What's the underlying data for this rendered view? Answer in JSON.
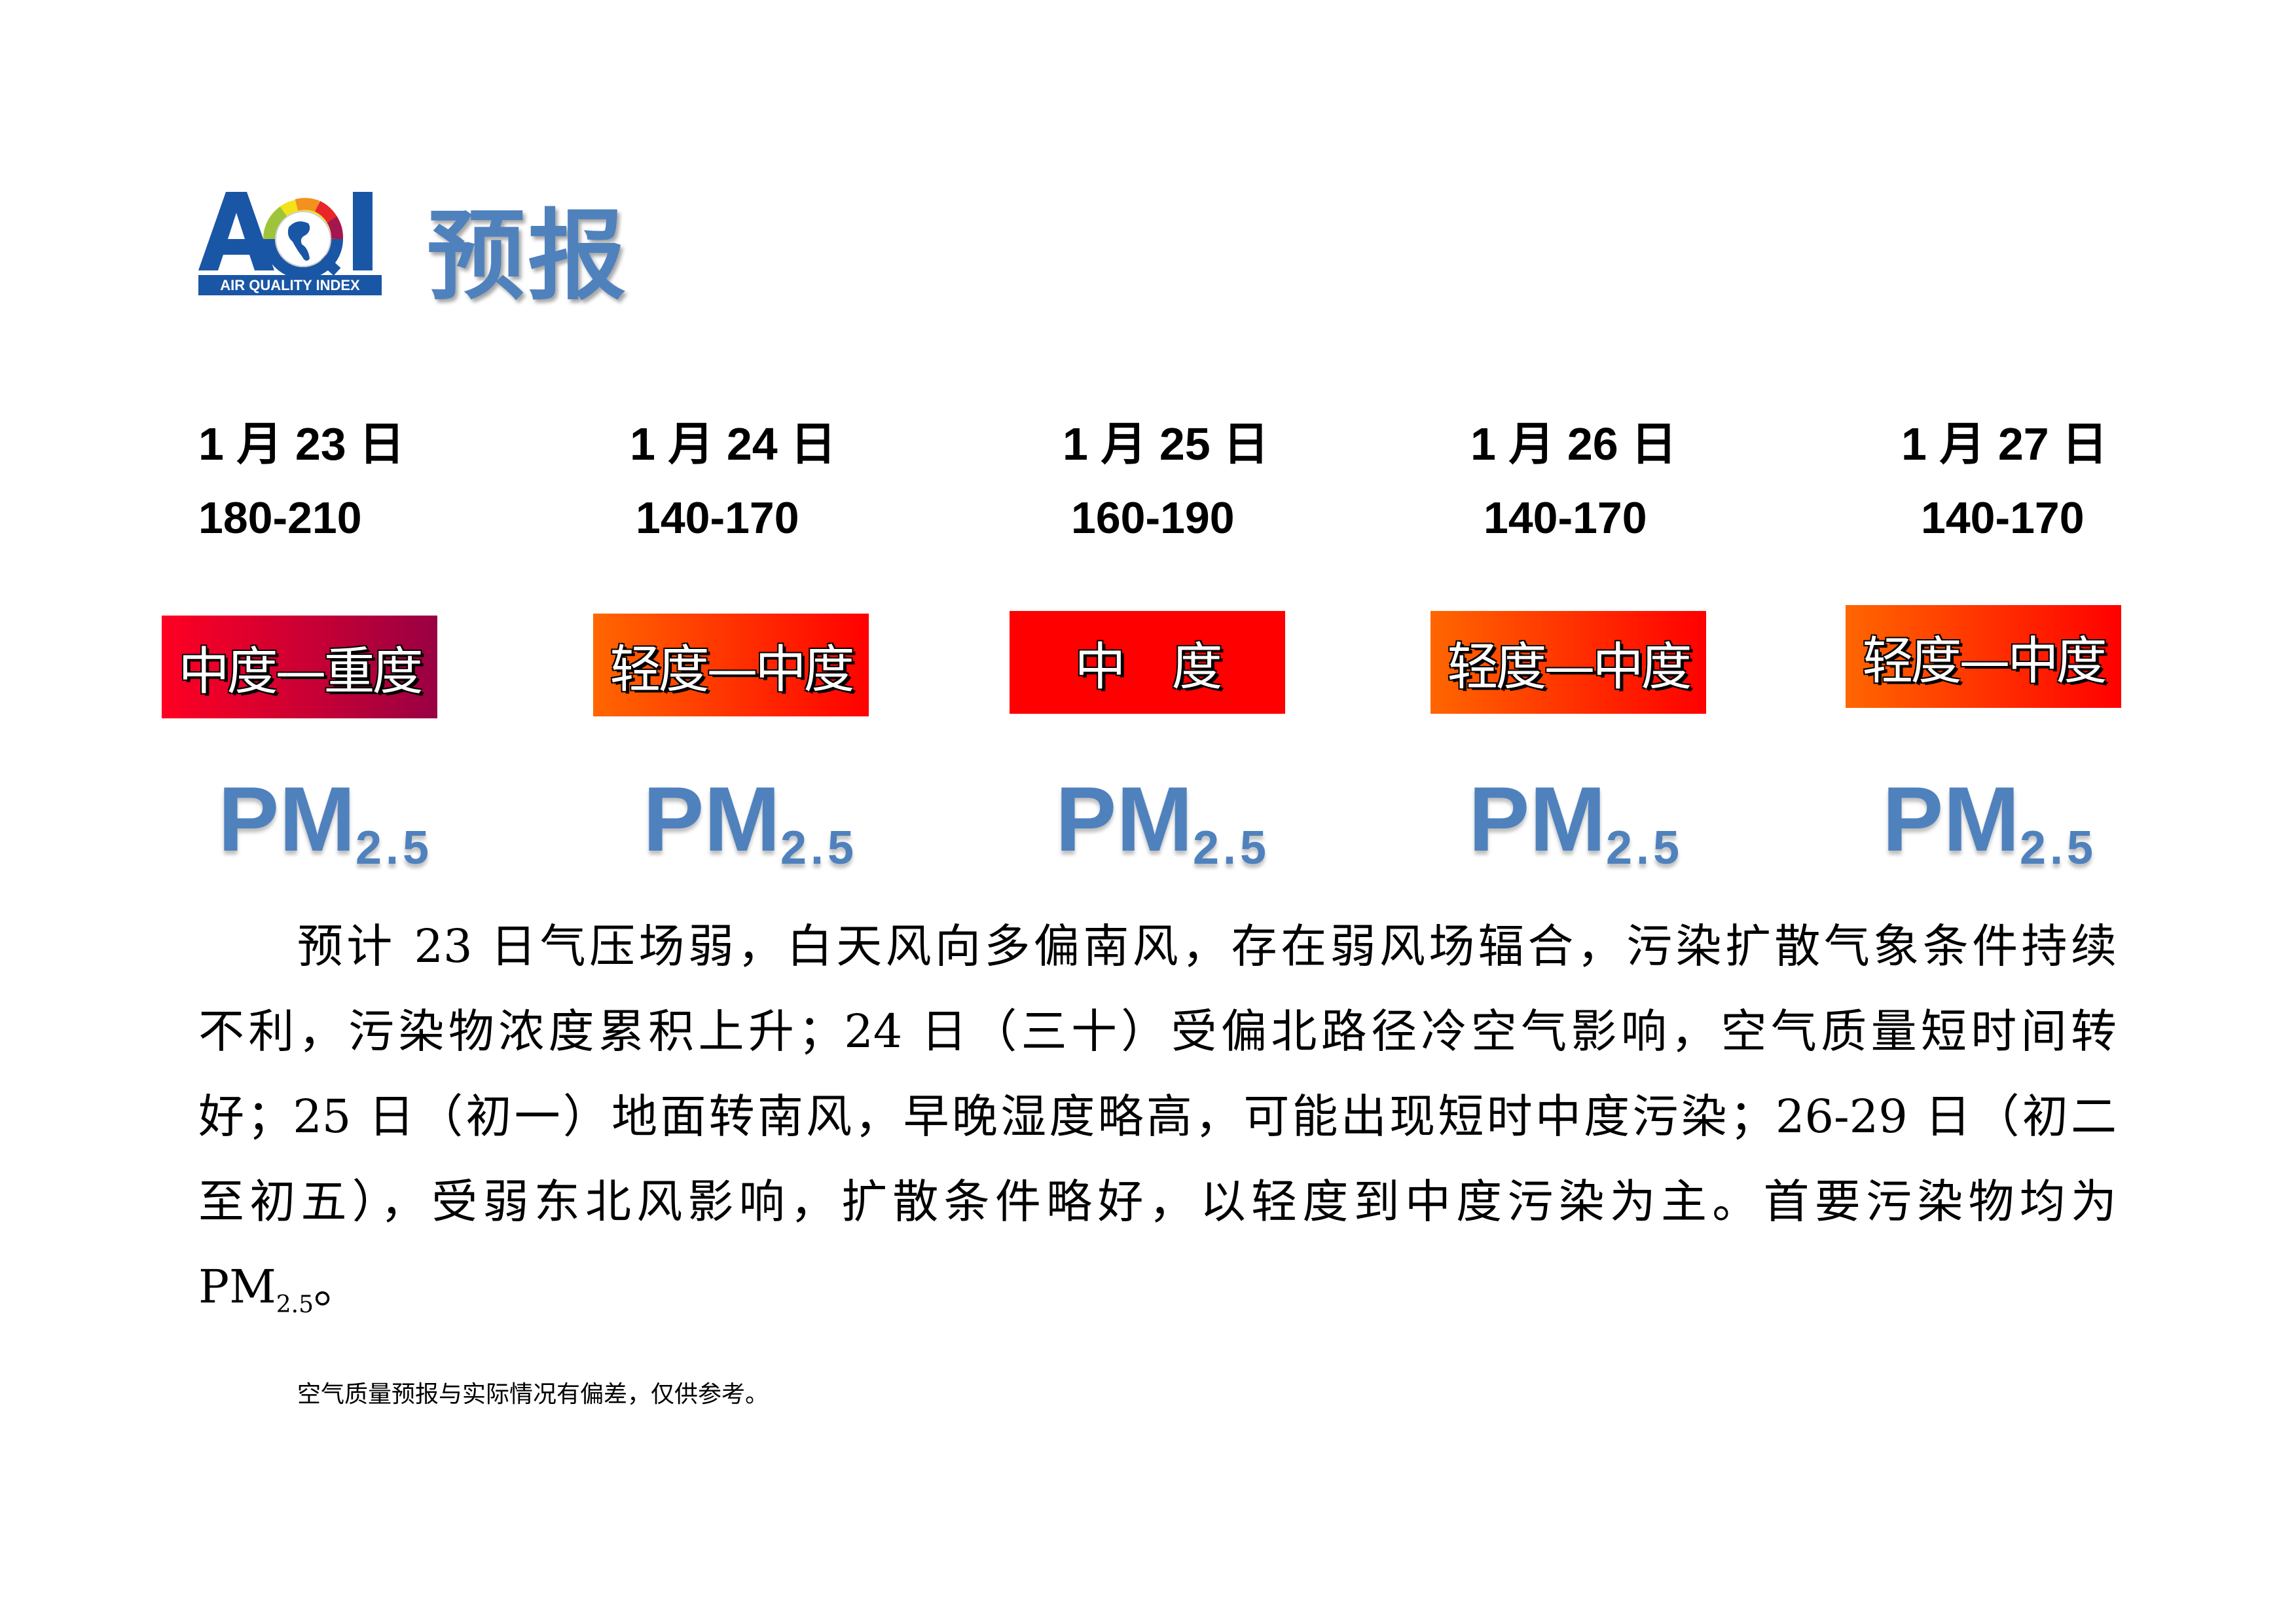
{
  "header": {
    "logo_text": "AQI",
    "logo_subtitle": "AIR QUALITY INDEX",
    "title": "预报"
  },
  "forecast": [
    {
      "date": "1 月 23 日",
      "range": "180-210",
      "level": "中度—重度",
      "pollutant": "PM",
      "pollutant_sub": "2.5",
      "colors": [
        "#ff0022",
        "#990044"
      ]
    },
    {
      "date": "1 月 24 日",
      "range": "140-170",
      "level": "轻度—中度",
      "pollutant": "PM",
      "pollutant_sub": "2.5",
      "colors": [
        "#ff6600",
        "#ff0000"
      ]
    },
    {
      "date": "1 月 25 日",
      "range": "160-190",
      "level": "中　度",
      "pollutant": "PM",
      "pollutant_sub": "2.5",
      "colors": [
        "#ff0000",
        "#ff0000"
      ]
    },
    {
      "date": "1 月 26 日",
      "range": "140-170",
      "level": "轻度—中度",
      "pollutant": "PM",
      "pollutant_sub": "2.5",
      "colors": [
        "#ff6600",
        "#ff0000"
      ]
    },
    {
      "date": "1 月 27 日",
      "range": "140-170",
      "level": "轻度—中度",
      "pollutant": "PM",
      "pollutant_sub": "2.5",
      "colors": [
        "#ff6600",
        "#ff0000"
      ]
    }
  ],
  "description": {
    "lines": [
      "　　预计 23 日气压场弱，白天风向多偏南风，存在弱风场辐合，污染扩散气象条件持续",
      "不利，污染物浓度累积上升；24 日（三十）受偏北路径冷空气影响，空气质量短时间转",
      "好；25 日（初一）地面转南风，早晚湿度略高，可能出现短时中度污染；26-29 日（初二",
      "至初五），受弱东北风影响，扩散条件略好，以轻度到中度污染为主。首要污染物均为"
    ],
    "last_main": "PM",
    "last_sub": "2.5",
    "last_end": "。"
  },
  "footnote": "空气质量预报与实际情况有偏差，仅供参考。",
  "colors": {
    "title_blue": "#4f81bd",
    "logo_blue": "#1a56a6"
  }
}
